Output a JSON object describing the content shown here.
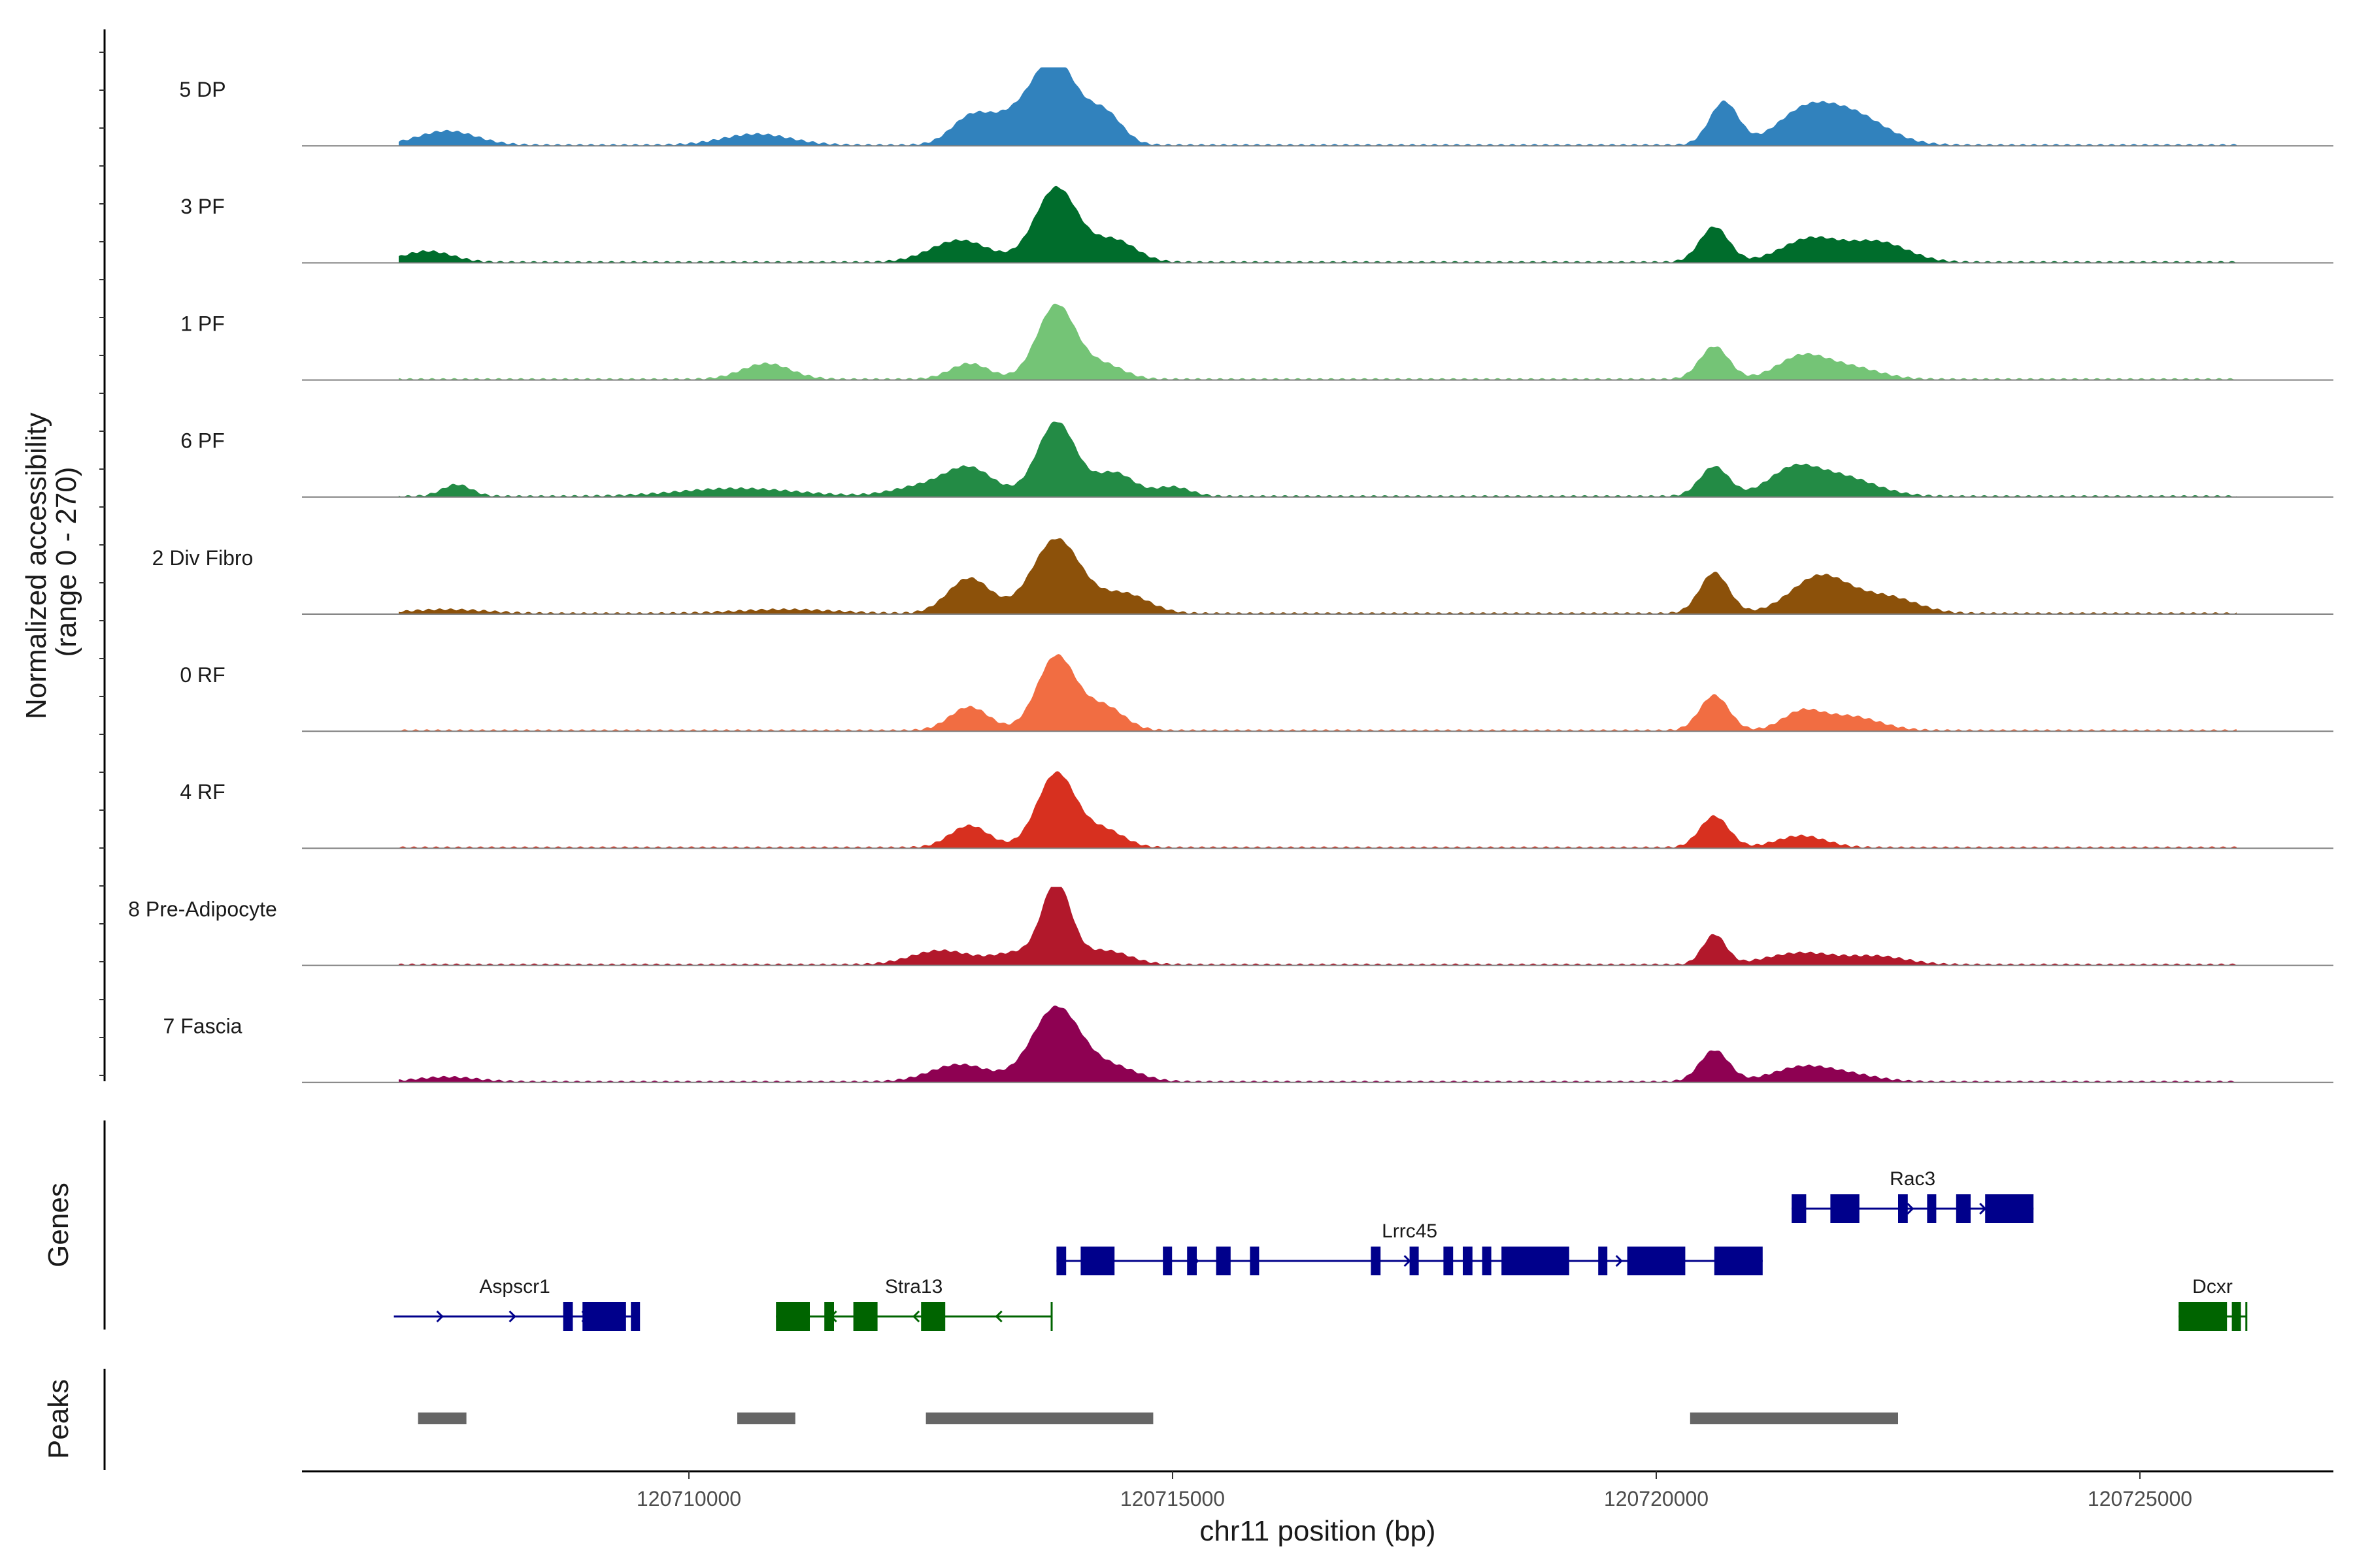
{
  "chart_data": {
    "type": "area",
    "title": "",
    "xlabel": "chr11 position (bp)",
    "ylabel": "Normalized accessibility\n(range 0 - 270)",
    "ylim": [
      0,
      270
    ],
    "xlim": [
      120706000,
      120727000
    ],
    "x_ticks": [
      120710000,
      120715000,
      120720000,
      120725000
    ],
    "x_tick_labels": [
      "120710000",
      "120715000",
      "120720000",
      "120725000"
    ],
    "series": [
      {
        "name": "5 DP",
        "color": "#3182BD",
        "peaks": [
          [
            120707500,
            0.18,
            300
          ],
          [
            120710700,
            0.14,
            350
          ],
          [
            120712900,
            0.3,
            200
          ],
          [
            120713400,
            0.38,
            300
          ],
          [
            120713800,
            0.95,
            220
          ],
          [
            120714300,
            0.4,
            180
          ],
          [
            120720700,
            0.55,
            150
          ],
          [
            120721500,
            0.35,
            280
          ],
          [
            120722000,
            0.4,
            350
          ]
        ]
      },
      {
        "name": "3 PF",
        "color": "#006D2C",
        "peaks": [
          [
            120707300,
            0.14,
            250
          ],
          [
            120712800,
            0.28,
            300
          ],
          [
            120713800,
            0.95,
            220
          ],
          [
            120714400,
            0.28,
            220
          ],
          [
            120720600,
            0.45,
            150
          ],
          [
            120721600,
            0.3,
            300
          ],
          [
            120722300,
            0.25,
            300
          ]
        ]
      },
      {
        "name": "1 PF",
        "color": "#74C476",
        "peaks": [
          [
            120710800,
            0.2,
            250
          ],
          [
            120712900,
            0.2,
            200
          ],
          [
            120713800,
            0.95,
            200
          ],
          [
            120714300,
            0.18,
            200
          ],
          [
            120720600,
            0.42,
            150
          ],
          [
            120721500,
            0.28,
            250
          ],
          [
            120722000,
            0.15,
            300
          ]
        ]
      },
      {
        "name": "6 PF",
        "color": "#238B45",
        "peaks": [
          [
            120707600,
            0.15,
            150
          ],
          [
            120710500,
            0.1,
            600
          ],
          [
            120712400,
            0.12,
            300
          ],
          [
            120712900,
            0.35,
            250
          ],
          [
            120713800,
            0.95,
            200
          ],
          [
            120714400,
            0.3,
            200
          ],
          [
            120715000,
            0.12,
            180
          ],
          [
            120720600,
            0.38,
            150
          ],
          [
            120721400,
            0.3,
            250
          ],
          [
            120721900,
            0.25,
            350
          ]
        ]
      },
      {
        "name": "2 Div Fibro",
        "color": "#8C510A",
        "peaks": [
          [
            120707500,
            0.05,
            400
          ],
          [
            120711000,
            0.05,
            500
          ],
          [
            120712900,
            0.45,
            220
          ],
          [
            120713800,
            0.95,
            250
          ],
          [
            120714500,
            0.25,
            250
          ],
          [
            120720600,
            0.52,
            150
          ],
          [
            120721700,
            0.48,
            300
          ],
          [
            120722400,
            0.2,
            300
          ]
        ]
      },
      {
        "name": "0 RF",
        "color": "#F16D42",
        "peaks": [
          [
            120712900,
            0.3,
            200
          ],
          [
            120713800,
            0.95,
            200
          ],
          [
            120714300,
            0.3,
            200
          ],
          [
            120720600,
            0.45,
            150
          ],
          [
            120721500,
            0.22,
            200
          ],
          [
            120722000,
            0.18,
            300
          ]
        ]
      },
      {
        "name": "4 RF",
        "color": "#D7301F",
        "peaks": [
          [
            120712900,
            0.28,
            200
          ],
          [
            120713800,
            0.95,
            200
          ],
          [
            120714300,
            0.22,
            200
          ],
          [
            120720600,
            0.4,
            150
          ],
          [
            120721500,
            0.15,
            250
          ]
        ]
      },
      {
        "name": "8 Pre-Adipocyte",
        "color": "#B2182B",
        "peaks": [
          [
            120712600,
            0.18,
            300
          ],
          [
            120713400,
            0.15,
            250
          ],
          [
            120713800,
            1.0,
            150
          ],
          [
            120714300,
            0.18,
            250
          ],
          [
            120720600,
            0.38,
            120
          ],
          [
            120721500,
            0.15,
            350
          ],
          [
            120722300,
            0.1,
            300
          ]
        ]
      },
      {
        "name": "7 Fascia",
        "color": "#8E0152",
        "peaks": [
          [
            120707500,
            0.06,
            300
          ],
          [
            120712800,
            0.22,
            300
          ],
          [
            120713800,
            0.95,
            250
          ],
          [
            120714400,
            0.18,
            250
          ],
          [
            120720600,
            0.4,
            150
          ],
          [
            120721500,
            0.18,
            300
          ],
          [
            120722000,
            0.08,
            300
          ]
        ]
      }
    ],
    "genes": [
      {
        "name": "Aspscr1",
        "strand": "+",
        "color": "#00008B",
        "row": 2,
        "start": 120706950,
        "end": 120709450,
        "exons": [
          [
            120708700,
            120708800
          ],
          [
            120708900,
            120709350
          ],
          [
            120709400,
            120709450
          ]
        ]
      },
      {
        "name": "Stra13",
        "strand": "-",
        "color": "#006400",
        "row": 2,
        "start": 120710900,
        "end": 120713750,
        "exons": [
          [
            120710900,
            120711250
          ],
          [
            120711400,
            120711500
          ],
          [
            120711700,
            120711950
          ],
          [
            120712400,
            120712650
          ]
        ]
      },
      {
        "name": "Lrrc45",
        "strand": "+",
        "color": "#00008B",
        "row": 1,
        "start": 120713800,
        "end": 120721100,
        "exons": [
          [
            120713800,
            120713900
          ],
          [
            120714050,
            120714400
          ],
          [
            120714900,
            120714950
          ],
          [
            120715150,
            120715250
          ],
          [
            120715450,
            120715600
          ],
          [
            120715800,
            120715850
          ],
          [
            120717050,
            120717150
          ],
          [
            120717450,
            120717500
          ],
          [
            120717800,
            120717900
          ],
          [
            120718000,
            120718100
          ],
          [
            120718200,
            120718250
          ],
          [
            120718400,
            120719100
          ],
          [
            120719400,
            120719450
          ],
          [
            120719700,
            120720300
          ],
          [
            120720600,
            120721100
          ]
        ]
      },
      {
        "name": "Rac3",
        "strand": "+",
        "color": "#00008B",
        "row": 0,
        "start": 120721400,
        "end": 120723900,
        "exons": [
          [
            120721400,
            120721550
          ],
          [
            120721800,
            120722100
          ],
          [
            120722500,
            120722600
          ],
          [
            120722800,
            120722850
          ],
          [
            120723100,
            120723250
          ],
          [
            120723400,
            120723900
          ]
        ]
      },
      {
        "name": "Dcxr",
        "strand": "-",
        "color": "#006400",
        "row": 2,
        "start": 120725400,
        "end": 120726100,
        "exons": [
          [
            120725400,
            120725900
          ],
          [
            120725950,
            120726000
          ]
        ]
      }
    ],
    "peaks_track": [
      [
        120707200,
        120707700
      ],
      [
        120710500,
        120711100
      ],
      [
        120712450,
        120714800
      ],
      [
        120720350,
        120722500
      ]
    ],
    "track_titles": {
      "genes": "Genes",
      "peaks": "Peaks"
    }
  }
}
